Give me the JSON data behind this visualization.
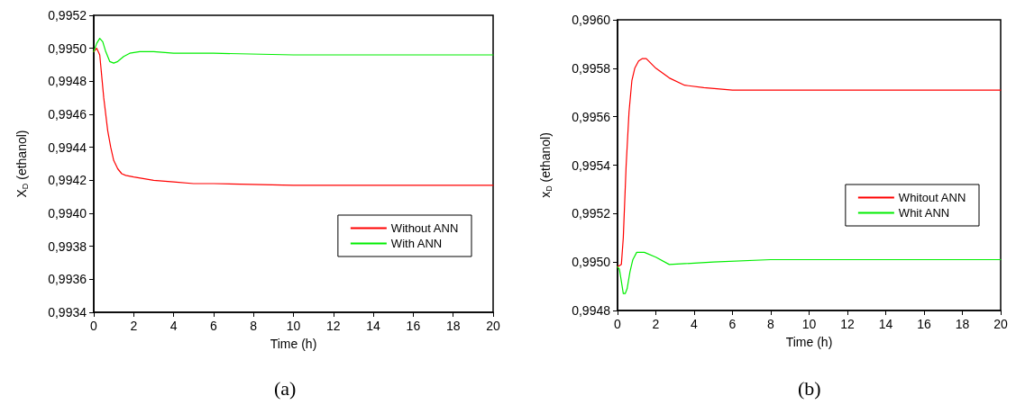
{
  "chart_data": [
    {
      "type": "line",
      "xlabel": "Time (h)",
      "ylabel": "X$_{D}$ (ethanol)",
      "annotations": [
        "(a)"
      ],
      "grid": false,
      "legend": "bottom right",
      "marker": "none",
      "line_style": "solid",
      "xlim": [
        0,
        20
      ],
      "xticks": [
        0,
        2,
        4,
        6,
        8,
        10,
        12,
        14,
        16,
        18,
        20
      ],
      "ylim": [
        0.9934,
        0.9952
      ],
      "yticks": [
        {
          "value": 0.9934,
          "label": "0,9934"
        },
        {
          "value": 0.9936,
          "label": "0,9936"
        },
        {
          "value": 0.9938,
          "label": "0,9938"
        },
        {
          "value": 0.994,
          "label": "0,9940"
        },
        {
          "value": 0.9942,
          "label": "0,9942"
        },
        {
          "value": 0.9944,
          "label": "0,9944"
        },
        {
          "value": 0.9946,
          "label": "0,9946"
        },
        {
          "value": 0.9948,
          "label": "0,9948"
        },
        {
          "value": 0.995,
          "label": "0,9950"
        },
        {
          "value": 0.9952,
          "label": "0,9952"
        }
      ],
      "series": [
        {
          "name": "Without ANN",
          "color": "#ff0000",
          "x": [
            0,
            0.15,
            0.3,
            0.5,
            0.7,
            0.85,
            1.0,
            1.2,
            1.4,
            1.6,
            2,
            3,
            4,
            5,
            6,
            10,
            14,
            20
          ],
          "values": [
            0.99498,
            0.995,
            0.99496,
            0.9947,
            0.9945,
            0.9944,
            0.99432,
            0.99427,
            0.99424,
            0.99423,
            0.99422,
            0.9942,
            0.99419,
            0.99418,
            0.99418,
            0.99417,
            0.99417,
            0.99417
          ]
        },
        {
          "name": "With ANN",
          "color": "#00ee00",
          "x": [
            0,
            0.15,
            0.3,
            0.45,
            0.6,
            0.8,
            1.0,
            1.2,
            1.5,
            1.8,
            2.3,
            3,
            4,
            6,
            10,
            20
          ],
          "values": [
            0.99498,
            0.99503,
            0.99506,
            0.99504,
            0.99498,
            0.99492,
            0.99491,
            0.99492,
            0.99495,
            0.99497,
            0.99498,
            0.99498,
            0.99497,
            0.99497,
            0.99496,
            0.99496
          ]
        }
      ]
    },
    {
      "type": "line",
      "xlabel": "Time (h)",
      "ylabel": "x$_{D}$ (ethanol)",
      "annotations": [
        "(b)"
      ],
      "grid": false,
      "legend": "right",
      "marker": "none",
      "line_style": "solid",
      "xlim": [
        0,
        20
      ],
      "xticks": [
        0,
        2,
        4,
        6,
        8,
        10,
        12,
        14,
        16,
        18,
        20
      ],
      "ylim": [
        0.9948,
        0.996
      ],
      "yticks": [
        {
          "value": 0.9948,
          "label": "0,9948"
        },
        {
          "value": 0.995,
          "label": "0,9950"
        },
        {
          "value": 0.9952,
          "label": "0,9952"
        },
        {
          "value": 0.9954,
          "label": "0,9954"
        },
        {
          "value": 0.9956,
          "label": "0,9956"
        },
        {
          "value": 0.9958,
          "label": "0,9958"
        },
        {
          "value": 0.996,
          "label": "0,9960"
        }
      ],
      "series": [
        {
          "name": "Whitout ANN",
          "color": "#ff0000",
          "x": [
            0,
            0.2,
            0.3,
            0.45,
            0.6,
            0.75,
            0.9,
            1.1,
            1.3,
            1.5,
            2,
            2.7,
            3.5,
            4.5,
            6,
            10,
            20
          ],
          "values": [
            0.99498,
            0.99499,
            0.9951,
            0.9954,
            0.99562,
            0.99575,
            0.9958,
            0.99583,
            0.99584,
            0.99584,
            0.9958,
            0.99576,
            0.99573,
            0.99572,
            0.99571,
            0.99571,
            0.99571
          ]
        },
        {
          "name": "Whit ANN",
          "color": "#00ee00",
          "x": [
            0,
            0.1,
            0.2,
            0.3,
            0.4,
            0.5,
            0.65,
            0.8,
            1.0,
            1.2,
            1.4,
            2,
            2.7,
            5,
            8,
            12,
            20
          ],
          "values": [
            0.99498,
            0.99497,
            0.99492,
            0.99487,
            0.99487,
            0.99489,
            0.99496,
            0.99501,
            0.99504,
            0.99504,
            0.99504,
            0.99502,
            0.99499,
            0.995,
            0.99501,
            0.99501,
            0.99501
          ]
        }
      ]
    }
  ]
}
